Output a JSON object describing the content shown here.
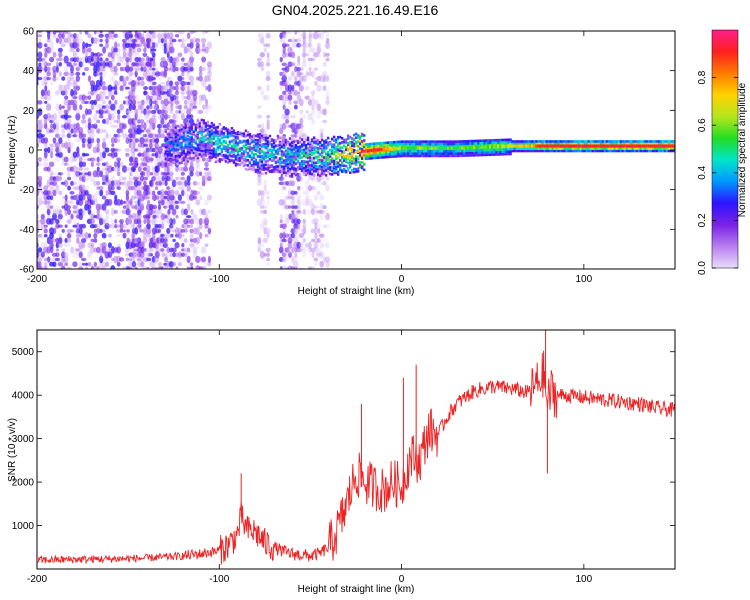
{
  "title": "GN04.2025.221.16.49.E16",
  "chart_data": [
    {
      "type": "heatmap",
      "xlabel": "Height of straight line (km)",
      "ylabel": "Frequency (Hz)",
      "xlim": [
        -200,
        150
      ],
      "ylim": [
        -60,
        60
      ],
      "xticks": [
        "-200",
        "-100",
        "0",
        "100"
      ],
      "yticks": [
        "-60",
        "-40",
        "-20",
        "0",
        "20",
        "40",
        "60"
      ],
      "colorbar": {
        "label": "Normalized spectral amplitude",
        "range": [
          0,
          1
        ],
        "ticks": [
          "0.0",
          "0.2",
          "0.4",
          "0.6",
          "0.8"
        ],
        "colors": [
          "#e8ddfa",
          "#b87ef0",
          "#7a22e6",
          "#2b14ff",
          "#0099ff",
          "#00e6c8",
          "#22dd22",
          "#b5e61d",
          "#ffd200",
          "#ff7a00",
          "#ff2020",
          "#ff1e8c"
        ]
      },
      "ridge": [
        {
          "x": -130,
          "freq": 2,
          "amp": 0.35
        },
        {
          "x": -110,
          "freq": 6,
          "amp": 0.45
        },
        {
          "x": -95,
          "freq": 3,
          "amp": 0.5
        },
        {
          "x": -80,
          "freq": -1,
          "amp": 0.5
        },
        {
          "x": -60,
          "freq": -3,
          "amp": 0.45
        },
        {
          "x": -40,
          "freq": -3,
          "amp": 0.6
        },
        {
          "x": -25,
          "freq": -1,
          "amp": 0.85
        },
        {
          "x": -15,
          "freq": 0,
          "amp": 0.95
        },
        {
          "x": 0,
          "freq": 1,
          "amp": 0.6
        },
        {
          "x": 30,
          "freq": 1,
          "amp": 0.55
        },
        {
          "x": 60,
          "freq": 2,
          "amp": 0.65
        },
        {
          "x": 80,
          "freq": 2,
          "amp": 0.9
        },
        {
          "x": 150,
          "freq": 2,
          "amp": 0.95
        }
      ]
    },
    {
      "type": "line",
      "xlabel": "Height of straight line (km)",
      "ylabel": "SNR (10 * v/v)",
      "xlim": [
        -200,
        150
      ],
      "ylim": [
        0,
        5500
      ],
      "xticks": [
        "-200",
        "-100",
        "0",
        "100"
      ],
      "yticks": [
        "1000",
        "2000",
        "3000",
        "4000",
        "5000"
      ],
      "color": "#ee2222",
      "series": [
        {
          "x": [
            -200,
            -180,
            -160,
            -140,
            -120,
            -110,
            -100,
            -95,
            -90,
            -88,
            -85,
            -80,
            -75,
            -70,
            -65,
            -60,
            -55,
            -50,
            -45,
            -40,
            -35,
            -30,
            -25,
            -20,
            -15,
            -10,
            -5,
            0,
            5,
            10,
            15,
            20,
            25,
            30,
            40,
            50,
            60,
            65,
            70,
            75,
            78,
            80,
            82,
            85,
            90,
            100,
            110,
            120,
            130,
            140,
            150
          ],
          "values": [
            200,
            220,
            230,
            250,
            300,
            350,
            420,
            550,
            800,
            1200,
            900,
            850,
            600,
            500,
            400,
            350,
            320,
            300,
            350,
            500,
            900,
            1500,
            2200,
            2000,
            1900,
            1800,
            2000,
            1900,
            2600,
            2500,
            3200,
            3100,
            3500,
            3800,
            4100,
            4200,
            4150,
            4100,
            4050,
            4300,
            4500,
            3800,
            4100,
            4000,
            4000,
            3950,
            3900,
            3850,
            3800,
            3700,
            3650
          ]
        }
      ],
      "peaks": [
        {
          "x": -88,
          "y": 2200
        },
        {
          "x": -22,
          "y": 3800
        },
        {
          "x": 1,
          "y": 4400
        },
        {
          "x": 8,
          "y": 4700
        },
        {
          "x": 79,
          "y": 5500
        },
        {
          "x": 80,
          "y": 2200
        }
      ],
      "grid": false
    }
  ]
}
